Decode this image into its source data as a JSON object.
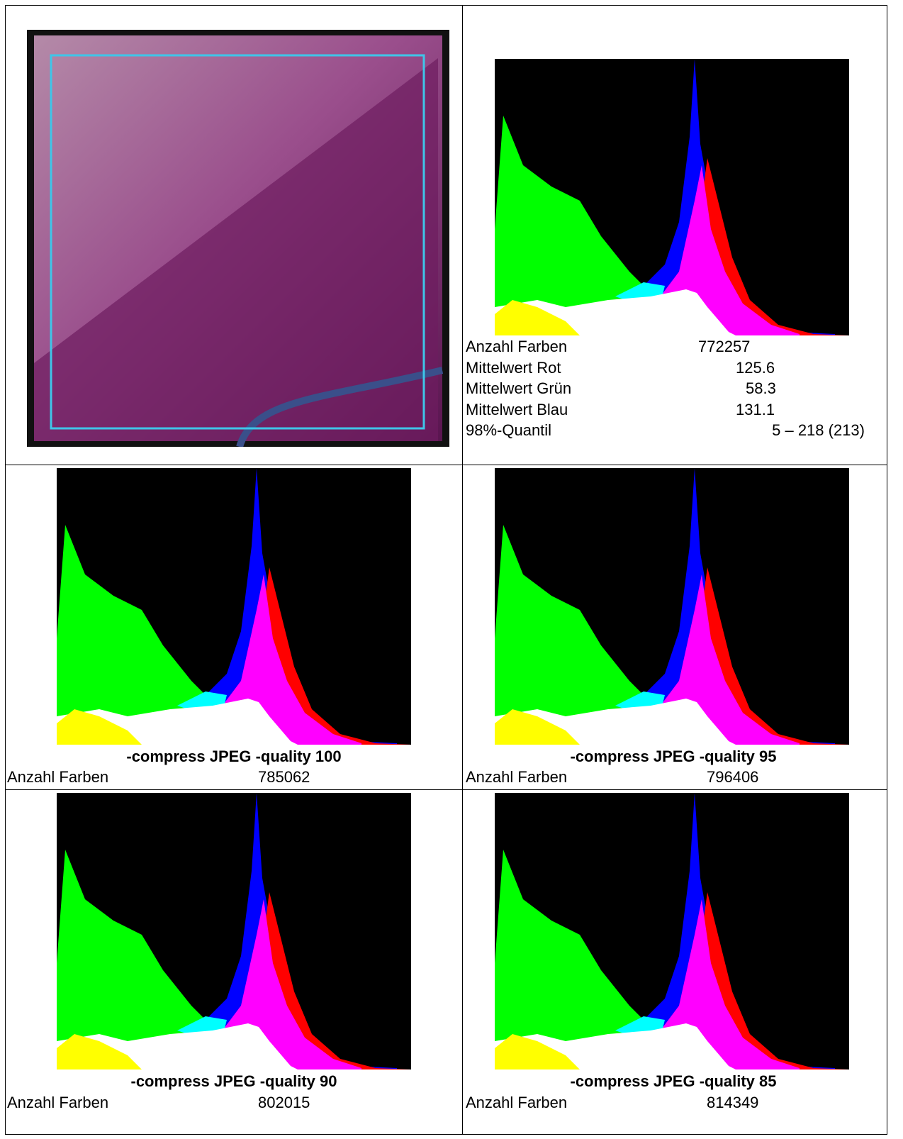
{
  "stats": {
    "rows": [
      [
        "Anzahl Farben",
        "772257"
      ],
      [
        "Mittelwert Rot",
        "125.6"
      ],
      [
        "Mittelwert Grün",
        "58.3"
      ],
      [
        "Mittelwert Blau",
        "131.1"
      ],
      [
        "98%-Quantil",
        "5 – 218 (213)"
      ]
    ]
  },
  "variants": [
    {
      "caption": "-compress JPEG -quality 100",
      "label": "Anzahl Farben",
      "count": "785062"
    },
    {
      "caption": "-compress JPEG -quality 95",
      "label": "Anzahl Farben",
      "count": "796406"
    },
    {
      "caption": "-compress JPEG -quality 90",
      "label": "Anzahl Farben",
      "count": "802015"
    },
    {
      "caption": "-compress JPEG -quality 85",
      "label": "Anzahl Farben",
      "count": "814349"
    }
  ]
}
